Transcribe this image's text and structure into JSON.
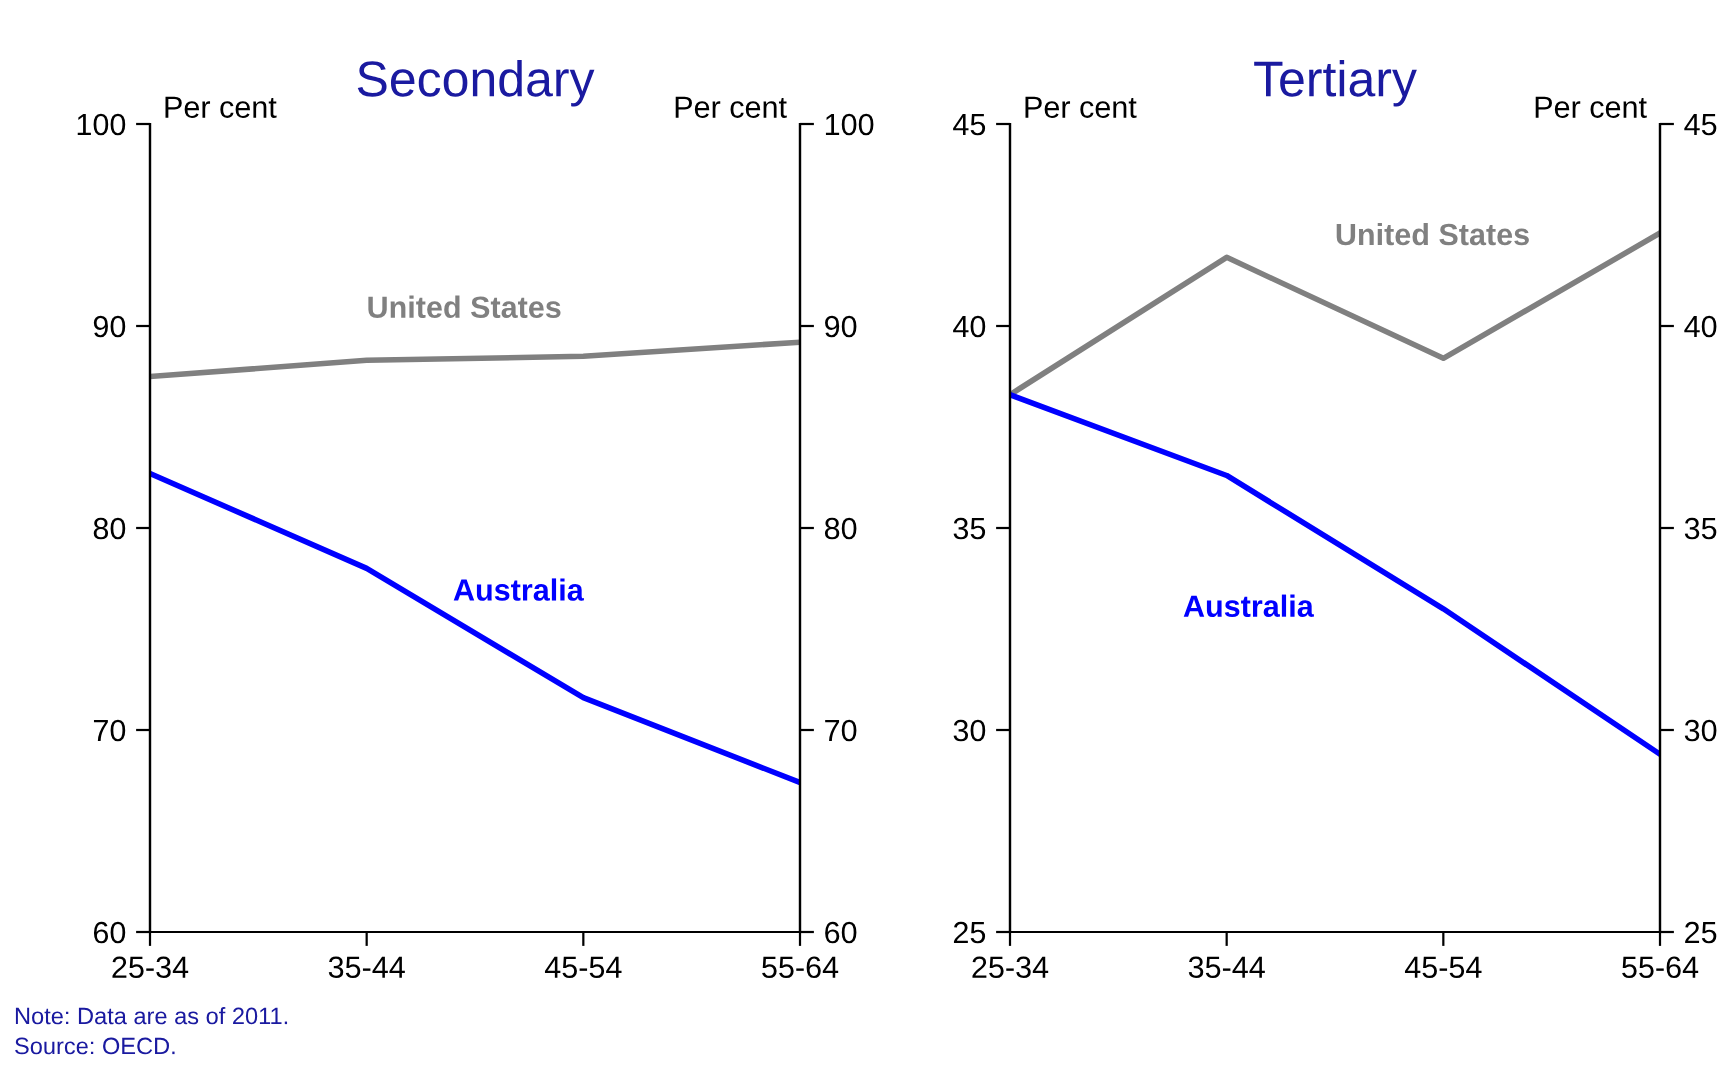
{
  "chart_data": [
    {
      "type": "line",
      "title": "Secondary",
      "ylabel": "Per cent",
      "y2label": "Per cent",
      "categories": [
        "25-34",
        "35-44",
        "45-54",
        "55-64"
      ],
      "series": [
        {
          "name": "United States",
          "color": "#808080",
          "values": [
            87.5,
            88.3,
            88.5,
            89.2
          ]
        },
        {
          "name": "Australia",
          "color": "#0000ff",
          "values": [
            82.7,
            78.0,
            71.6,
            67.4
          ]
        }
      ],
      "ylim": [
        60,
        100
      ],
      "yticks": [
        60,
        70,
        80,
        90,
        100
      ],
      "y2lim": [
        60,
        100
      ],
      "y2ticks": [
        60,
        70,
        80,
        90,
        100
      ],
      "grid": false,
      "legend": false,
      "annotations": [
        "Note: Data are as of 2011.",
        "Source: OECD."
      ]
    },
    {
      "type": "line",
      "title": "Tertiary",
      "ylabel": "Per cent",
      "y2label": "Per cent",
      "categories": [
        "25-34",
        "35-44",
        "45-54",
        "55-64"
      ],
      "series": [
        {
          "name": "United States",
          "color": "#808080",
          "values": [
            38.3,
            41.7,
            39.2,
            42.3
          ]
        },
        {
          "name": "Australia",
          "color": "#0000ff",
          "values": [
            38.3,
            36.3,
            33.0,
            29.4
          ]
        }
      ],
      "ylim": [
        25,
        45
      ],
      "yticks": [
        25,
        30,
        35,
        40,
        45
      ],
      "y2lim": [
        25,
        45
      ],
      "y2ticks": [
        25,
        30,
        35,
        40,
        45
      ],
      "grid": false,
      "legend": false
    }
  ]
}
